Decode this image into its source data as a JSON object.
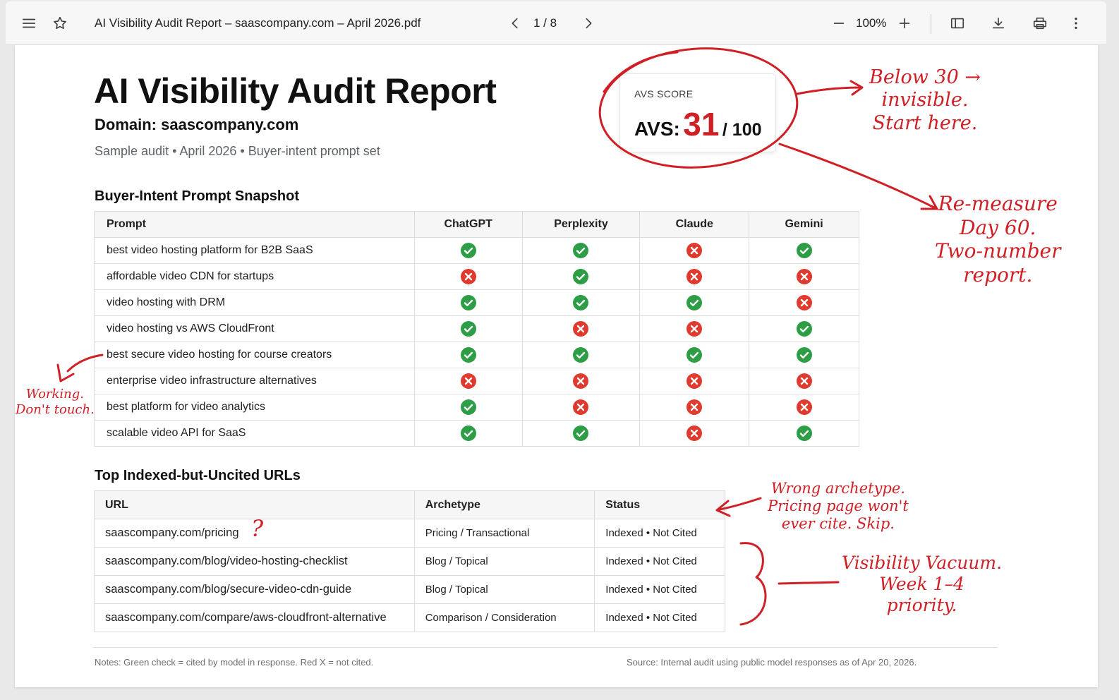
{
  "viewer": {
    "title": "AI Visibility Audit Report – saascompany.com – April 2026.pdf",
    "page_indicator": "1 / 8",
    "zoom": "100%"
  },
  "report": {
    "title": "AI Visibility Audit Report",
    "domain": "Domain: saascompany.com",
    "meta": "Sample audit • April 2026 • Buyer-intent prompt set"
  },
  "score": {
    "label": "AVS SCORE",
    "prefix": "AVS:",
    "value": "31",
    "max": "/ 100"
  },
  "prompt_table": {
    "title": "Buyer-Intent Prompt Snapshot",
    "headers": [
      "Prompt",
      "ChatGPT",
      "Perplexity",
      "Claude",
      "Gemini"
    ],
    "rows": [
      {
        "prompt": "best video hosting platform for B2B SaaS",
        "cited": [
          true,
          true,
          false,
          true
        ]
      },
      {
        "prompt": "affordable video CDN for startups",
        "cited": [
          false,
          true,
          false,
          false
        ]
      },
      {
        "prompt": "video hosting with DRM",
        "cited": [
          true,
          true,
          true,
          false
        ]
      },
      {
        "prompt": "video hosting vs AWS CloudFront",
        "cited": [
          true,
          false,
          false,
          true
        ]
      },
      {
        "prompt": "best secure video hosting for course creators",
        "cited": [
          true,
          true,
          true,
          true
        ]
      },
      {
        "prompt": "enterprise video infrastructure alternatives",
        "cited": [
          false,
          false,
          false,
          false
        ]
      },
      {
        "prompt": "best platform for video analytics",
        "cited": [
          true,
          false,
          false,
          false
        ]
      },
      {
        "prompt": "scalable video API for SaaS",
        "cited": [
          true,
          true,
          false,
          true
        ]
      }
    ]
  },
  "url_table": {
    "title": "Top Indexed-but-Uncited URLs",
    "headers": [
      "URL",
      "Archetype",
      "Status"
    ],
    "rows": [
      {
        "url": "saascompany.com/pricing",
        "archetype": "Pricing / Transactional",
        "status": "Indexed • Not Cited"
      },
      {
        "url": "saascompany.com/blog/video-hosting-checklist",
        "archetype": "Blog / Topical",
        "status": "Indexed • Not Cited"
      },
      {
        "url": "saascompany.com/blog/secure-video-cdn-guide",
        "archetype": "Blog / Topical",
        "status": "Indexed • Not Cited"
      },
      {
        "url": "saascompany.com/compare/aws-cloudfront-alternative",
        "archetype": "Comparison / Consideration",
        "status": "Indexed • Not Cited"
      }
    ]
  },
  "notes": {
    "left": "Notes: Green check = cited by model in response. Red X = not cited.",
    "right": "Source: Internal audit using public model responses as of Apr 20, 2026."
  },
  "annotations": {
    "score_note": [
      "Below 30 →",
      "invisible.",
      "Start here."
    ],
    "remeasure_note": [
      "Re-measure",
      "Day 60.",
      "Two-number",
      "report."
    ],
    "working_note": [
      "Working.",
      "Don't touch."
    ],
    "archetype_note": [
      "Wrong archetype.",
      "Pricing page won't",
      "ever cite. Skip."
    ],
    "vacuum_note": [
      "Visibility Vacuum.",
      "Week 1–4",
      "priority."
    ],
    "question_mark": "?"
  },
  "colors": {
    "check_green": "#2e9e46",
    "cross_red": "#e03a2f",
    "annotation_red": "#d01f25"
  },
  "icons": {
    "cited": "check-circle-icon",
    "not_cited": "x-circle-icon"
  }
}
